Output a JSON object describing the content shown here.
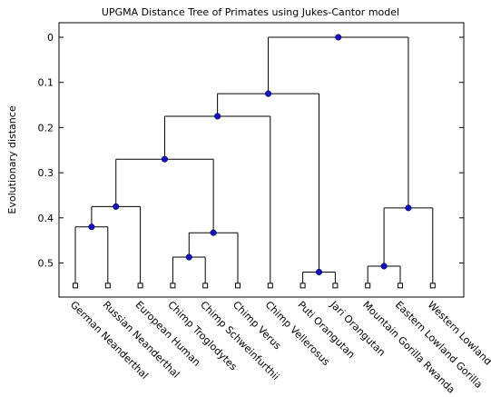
{
  "chart_data": {
    "type": "dendrogram",
    "title": "UPGMA Distance Tree of Primates using Jukes-Cantor model",
    "ylabel": "Evolutionary distance",
    "xlabel": "",
    "ylim": [
      0,
      0.58
    ],
    "y_reversed": true,
    "yticks": [
      0,
      0.1,
      0.2,
      0.3,
      0.4,
      0.5
    ],
    "ytick_labels": [
      "0",
      "0.1",
      "0.2",
      "0.3",
      "0.4",
      "0.5"
    ],
    "leaf_distance": 0.55,
    "leaves": [
      "German Neanderthal",
      "Russian Neanderthal",
      "European Human",
      "Chimp Troglodytes",
      "Chimp Schweinfurthii",
      "Chimp Verus",
      "Chimp Vellerosus",
      "Puti Orangutan",
      "Jari Orangutan",
      "Mountain Gorilla Rwanda",
      "Eastern Lowland Gorilla",
      "Western Lowland"
    ],
    "nodes": [
      {
        "id": "n1",
        "children": [
          "German Neanderthal",
          "Russian Neanderthal"
        ],
        "distance": 0.42
      },
      {
        "id": "n2",
        "children": [
          "n1",
          "European Human"
        ],
        "distance": 0.375
      },
      {
        "id": "n3",
        "children": [
          "Chimp Troglodytes",
          "Chimp Schweinfurthii"
        ],
        "distance": 0.487
      },
      {
        "id": "n4",
        "children": [
          "n3",
          "Chimp Verus"
        ],
        "distance": 0.433
      },
      {
        "id": "n5",
        "children": [
          "n2",
          "n4"
        ],
        "distance": 0.27
      },
      {
        "id": "n6",
        "children": [
          "n5",
          "Chimp Vellerosus"
        ],
        "distance": 0.175
      },
      {
        "id": "n7",
        "children": [
          "Puti Orangutan",
          "Jari Orangutan"
        ],
        "distance": 0.52
      },
      {
        "id": "n8",
        "children": [
          "n6",
          "n7"
        ],
        "distance": 0.125
      },
      {
        "id": "n9",
        "children": [
          "Mountain Gorilla Rwanda",
          "Eastern Lowland Gorilla"
        ],
        "distance": 0.507
      },
      {
        "id": "n10",
        "children": [
          "n9",
          "Western Lowland"
        ],
        "distance": 0.378
      },
      {
        "id": "n11",
        "children": [
          "n8",
          "n10"
        ],
        "distance": 0.0
      }
    ],
    "node_color": "#1010c8",
    "grid": false
  }
}
